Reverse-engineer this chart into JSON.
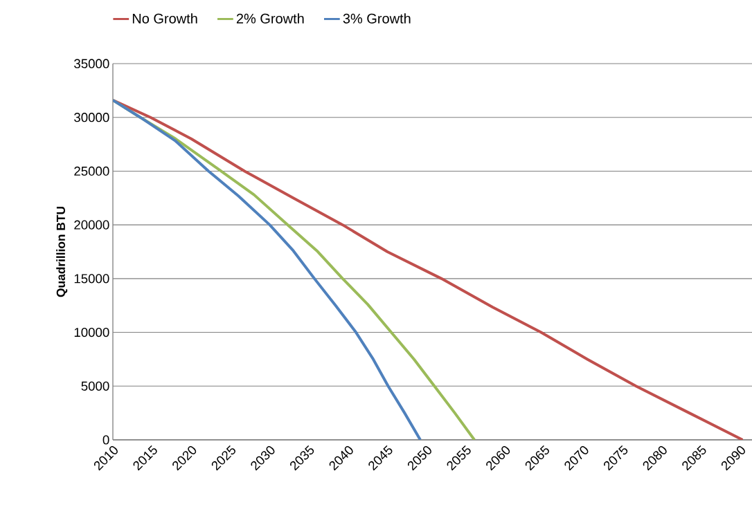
{
  "chart_data": {
    "type": "line",
    "ylabel": "Quadrillion BTU",
    "xlim": [
      2010,
      2091.5
    ],
    "xticks": [
      2010,
      2015,
      2020,
      2025,
      2030,
      2035,
      2040,
      2045,
      2050,
      2055,
      2060,
      2065,
      2070,
      2075,
      2080,
      2085,
      2090
    ],
    "ylim": [
      0,
      35000
    ],
    "yticks": [
      0,
      5000,
      10000,
      15000,
      20000,
      25000,
      30000,
      35000
    ],
    "grid": "y",
    "legend": "top",
    "marker": "none",
    "line_style": "solid",
    "series": [
      {
        "name": "No Growth",
        "color": "#c0504d",
        "x": [
          2010,
          2014.8,
          2020,
          2026.8,
          2033,
          2039.3,
          2045,
          2051.9,
          2058.4,
          2064.6,
          2070.5,
          2076.7,
          2083.5,
          2090.3
        ],
        "values": [
          31600,
          30000,
          28000,
          25000,
          22500,
          20000,
          17500,
          15000,
          12350,
          10000,
          7500,
          5000,
          2500,
          0
        ]
      },
      {
        "name": "2% Growth",
        "color": "#9bbb59",
        "x": [
          2010,
          2013.5,
          2018,
          2023.8,
          2028,
          2032.3,
          2036,
          2039.3,
          2042.5,
          2045.5,
          2048.4,
          2051,
          2053.6,
          2056.1
        ],
        "values": [
          31600,
          30000,
          28000,
          25000,
          22800,
          20000,
          17600,
          15000,
          12600,
          10000,
          7500,
          5000,
          2500,
          0
        ]
      },
      {
        "name": "3% Growth",
        "color": "#4f81bd",
        "x": [
          2010,
          2013.5,
          2018,
          2022.2,
          2026,
          2030,
          2033,
          2035.7,
          2038.4,
          2041,
          2043.2,
          2045.1,
          2047.2,
          2049.2
        ],
        "values": [
          31600,
          30000,
          27800,
          25000,
          22700,
          20000,
          17600,
          15000,
          12500,
          10000,
          7500,
          5000,
          2500,
          0
        ]
      }
    ]
  }
}
